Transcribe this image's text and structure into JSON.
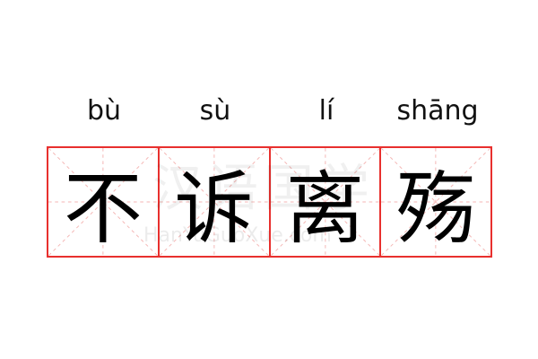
{
  "pinyin": [
    "bù",
    "sù",
    "lí",
    "shāng"
  ],
  "characters": [
    "不",
    "诉",
    "离",
    "殇"
  ],
  "watermark": {
    "text": "汉语国学",
    "url": "HanYuGuoXue.com"
  },
  "colors": {
    "grid": "#e8302e",
    "guide": "#f4b6b4",
    "text": "#000000"
  }
}
